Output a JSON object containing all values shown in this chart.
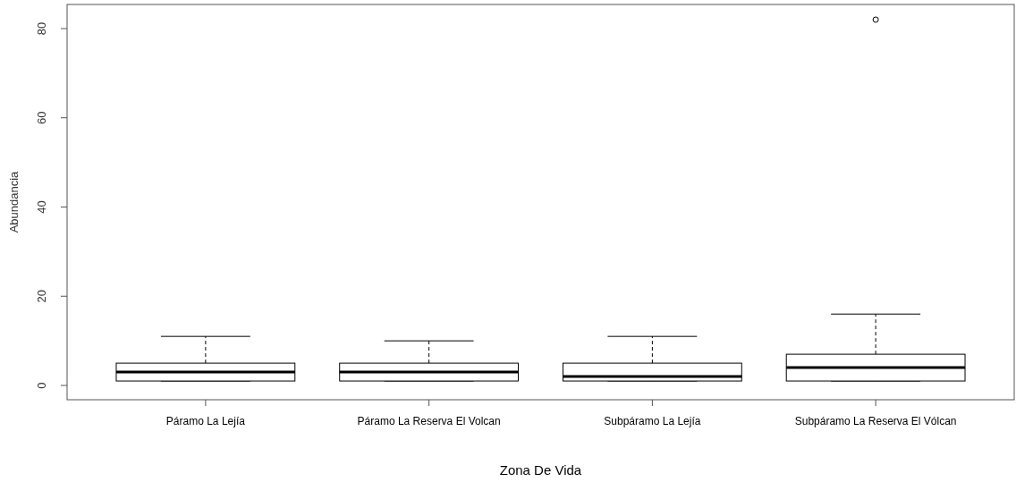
{
  "chart_data": {
    "type": "box",
    "xlabel": "Zona De Vida",
    "ylabel": "Abundancia",
    "categories": [
      "Páramo La Lejía",
      "Páramo La Reserva El Volcan",
      "Subpáramo La Lejía",
      "Subpáramo La Reserva El Vólcan"
    ],
    "boxes": [
      {
        "low": 1,
        "q1": 1,
        "median": 3,
        "q3": 5,
        "high": 11
      },
      {
        "low": 1,
        "q1": 1,
        "median": 3,
        "q3": 5,
        "high": 10
      },
      {
        "low": 1,
        "q1": 1,
        "median": 2,
        "q3": 5,
        "high": 11
      },
      {
        "low": 1,
        "q1": 1,
        "median": 4,
        "q3": 7,
        "high": 16,
        "outliers": [
          82
        ]
      }
    ],
    "ylim": [
      -3.2,
      85.4
    ],
    "yticks": [
      0,
      20,
      40,
      60,
      80
    ],
    "grid": false
  }
}
